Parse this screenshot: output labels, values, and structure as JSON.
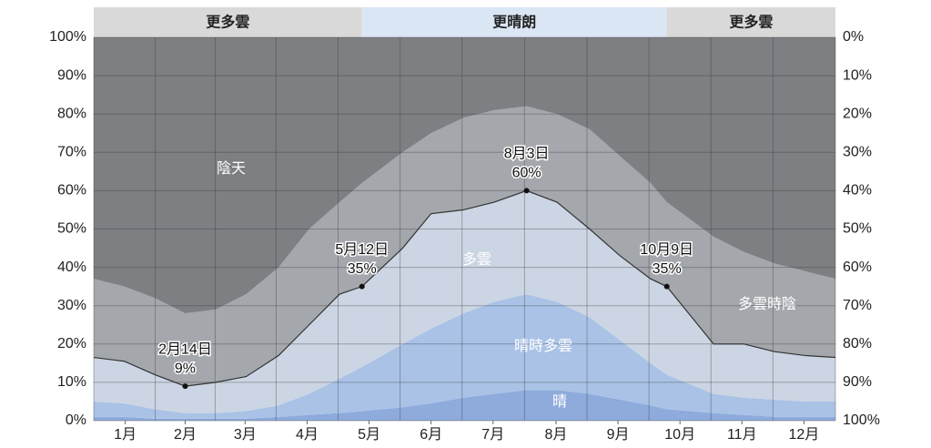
{
  "chart_data": {
    "type": "stacked_area",
    "x": [
      0,
      15,
      30,
      45,
      60,
      75,
      91,
      106,
      121,
      132,
      152,
      166,
      182,
      197,
      213,
      228,
      244,
      259,
      274,
      282,
      305,
      320,
      335,
      350,
      365
    ],
    "xlim": [
      0,
      365
    ],
    "xticks": [
      {
        "value": 15.5,
        "label": "1月"
      },
      {
        "value": 45,
        "label": "2月"
      },
      {
        "value": 74.5,
        "label": "3月"
      },
      {
        "value": 105,
        "label": "4月"
      },
      {
        "value": 135.5,
        "label": "5月"
      },
      {
        "value": 166,
        "label": "6月"
      },
      {
        "value": 196.5,
        "label": "7月"
      },
      {
        "value": 227.5,
        "label": "8月"
      },
      {
        "value": 258,
        "label": "9月"
      },
      {
        "value": 288.5,
        "label": "10月"
      },
      {
        "value": 319,
        "label": "11月"
      },
      {
        "value": 349.5,
        "label": "12月"
      }
    ],
    "ylim": [
      0,
      100
    ],
    "yticks": [
      {
        "value": 0,
        "label": "0%"
      },
      {
        "value": 10,
        "label": "10%"
      },
      {
        "value": 20,
        "label": "20%"
      },
      {
        "value": 30,
        "label": "30%"
      },
      {
        "value": 40,
        "label": "40%"
      },
      {
        "value": 50,
        "label": "50%"
      },
      {
        "value": 60,
        "label": "60%"
      },
      {
        "value": 70,
        "label": "70%"
      },
      {
        "value": 80,
        "label": "80%"
      },
      {
        "value": 90,
        "label": "90%"
      },
      {
        "value": 100,
        "label": "100%"
      }
    ],
    "y2lim": [
      100,
      0
    ],
    "y2ticks": [
      {
        "value": 0,
        "label": "0%"
      },
      {
        "value": 10,
        "label": "10%"
      },
      {
        "value": 20,
        "label": "20%"
      },
      {
        "value": 30,
        "label": "30%"
      },
      {
        "value": 40,
        "label": "40%"
      },
      {
        "value": 50,
        "label": "50%"
      },
      {
        "value": 60,
        "label": "60%"
      },
      {
        "value": 70,
        "label": "70%"
      },
      {
        "value": 80,
        "label": "80%"
      },
      {
        "value": 90,
        "label": "90%"
      },
      {
        "value": 100,
        "label": "100%"
      }
    ],
    "grid": true,
    "series": [
      {
        "name": "晴",
        "color": "#8eabdc",
        "values": [
          1,
          1,
          0.5,
          0.5,
          0.5,
          0.5,
          1,
          1.5,
          2,
          2.5,
          3.5,
          4.5,
          6,
          7,
          8,
          8,
          7,
          5.5,
          4,
          3,
          2,
          1.5,
          1,
          1,
          1
        ]
      },
      {
        "name": "晴時多雲",
        "color": "#a9c2e6",
        "values": [
          4,
          3.5,
          2.5,
          1.5,
          1.5,
          2,
          3,
          5.5,
          9,
          11.5,
          16.5,
          19.5,
          22,
          24,
          25,
          23,
          20,
          15.5,
          11,
          9,
          5,
          4.5,
          4.5,
          4,
          4
        ]
      },
      {
        "name": "多雲",
        "color": "#ccd5e3",
        "values": [
          11.5,
          11,
          9,
          7,
          8,
          9,
          13,
          18,
          22,
          21,
          25,
          30,
          27,
          26,
          27,
          26,
          23,
          22,
          22,
          23,
          13,
          14,
          12.5,
          12,
          11.5
        ]
      },
      {
        "name": "多雲時陰",
        "color": "#a4a7ac",
        "values": [
          20.5,
          19.5,
          20,
          19,
          19,
          21.5,
          23,
          25,
          24,
          27,
          25,
          21,
          24,
          24,
          22,
          23,
          26,
          26,
          25,
          22,
          28,
          24,
          23,
          22,
          20.5
        ]
      },
      {
        "name": "陰天",
        "color": "#7d7f83",
        "values": [
          63,
          65,
          68,
          72,
          71,
          67,
          60,
          50,
          43,
          38,
          30,
          25,
          21,
          19,
          18,
          20,
          24,
          31,
          38,
          43,
          52,
          56,
          59,
          61,
          63
        ]
      }
    ],
    "sky_bands": [
      {
        "label": "更多雲",
        "from": 0,
        "to": 132,
        "color": "#d9d9d9"
      },
      {
        "label": "更晴朗",
        "from": 132,
        "to": 282,
        "color": "#dbe6f5"
      },
      {
        "label": "更多雲",
        "from": 282,
        "to": 365,
        "color": "#d9d9d9"
      }
    ],
    "annotations": [
      {
        "x": 45,
        "value": 9,
        "text": "2月14日",
        "value_label": "9%"
      },
      {
        "x": 132,
        "value": 35,
        "text": "5月12日",
        "value_label": "35%"
      },
      {
        "x": 213,
        "value": 60,
        "text": "8月3日",
        "value_label": "60%"
      },
      {
        "x": 282,
        "value": 35,
        "text": "10月9日",
        "value_label": "35%"
      }
    ]
  }
}
